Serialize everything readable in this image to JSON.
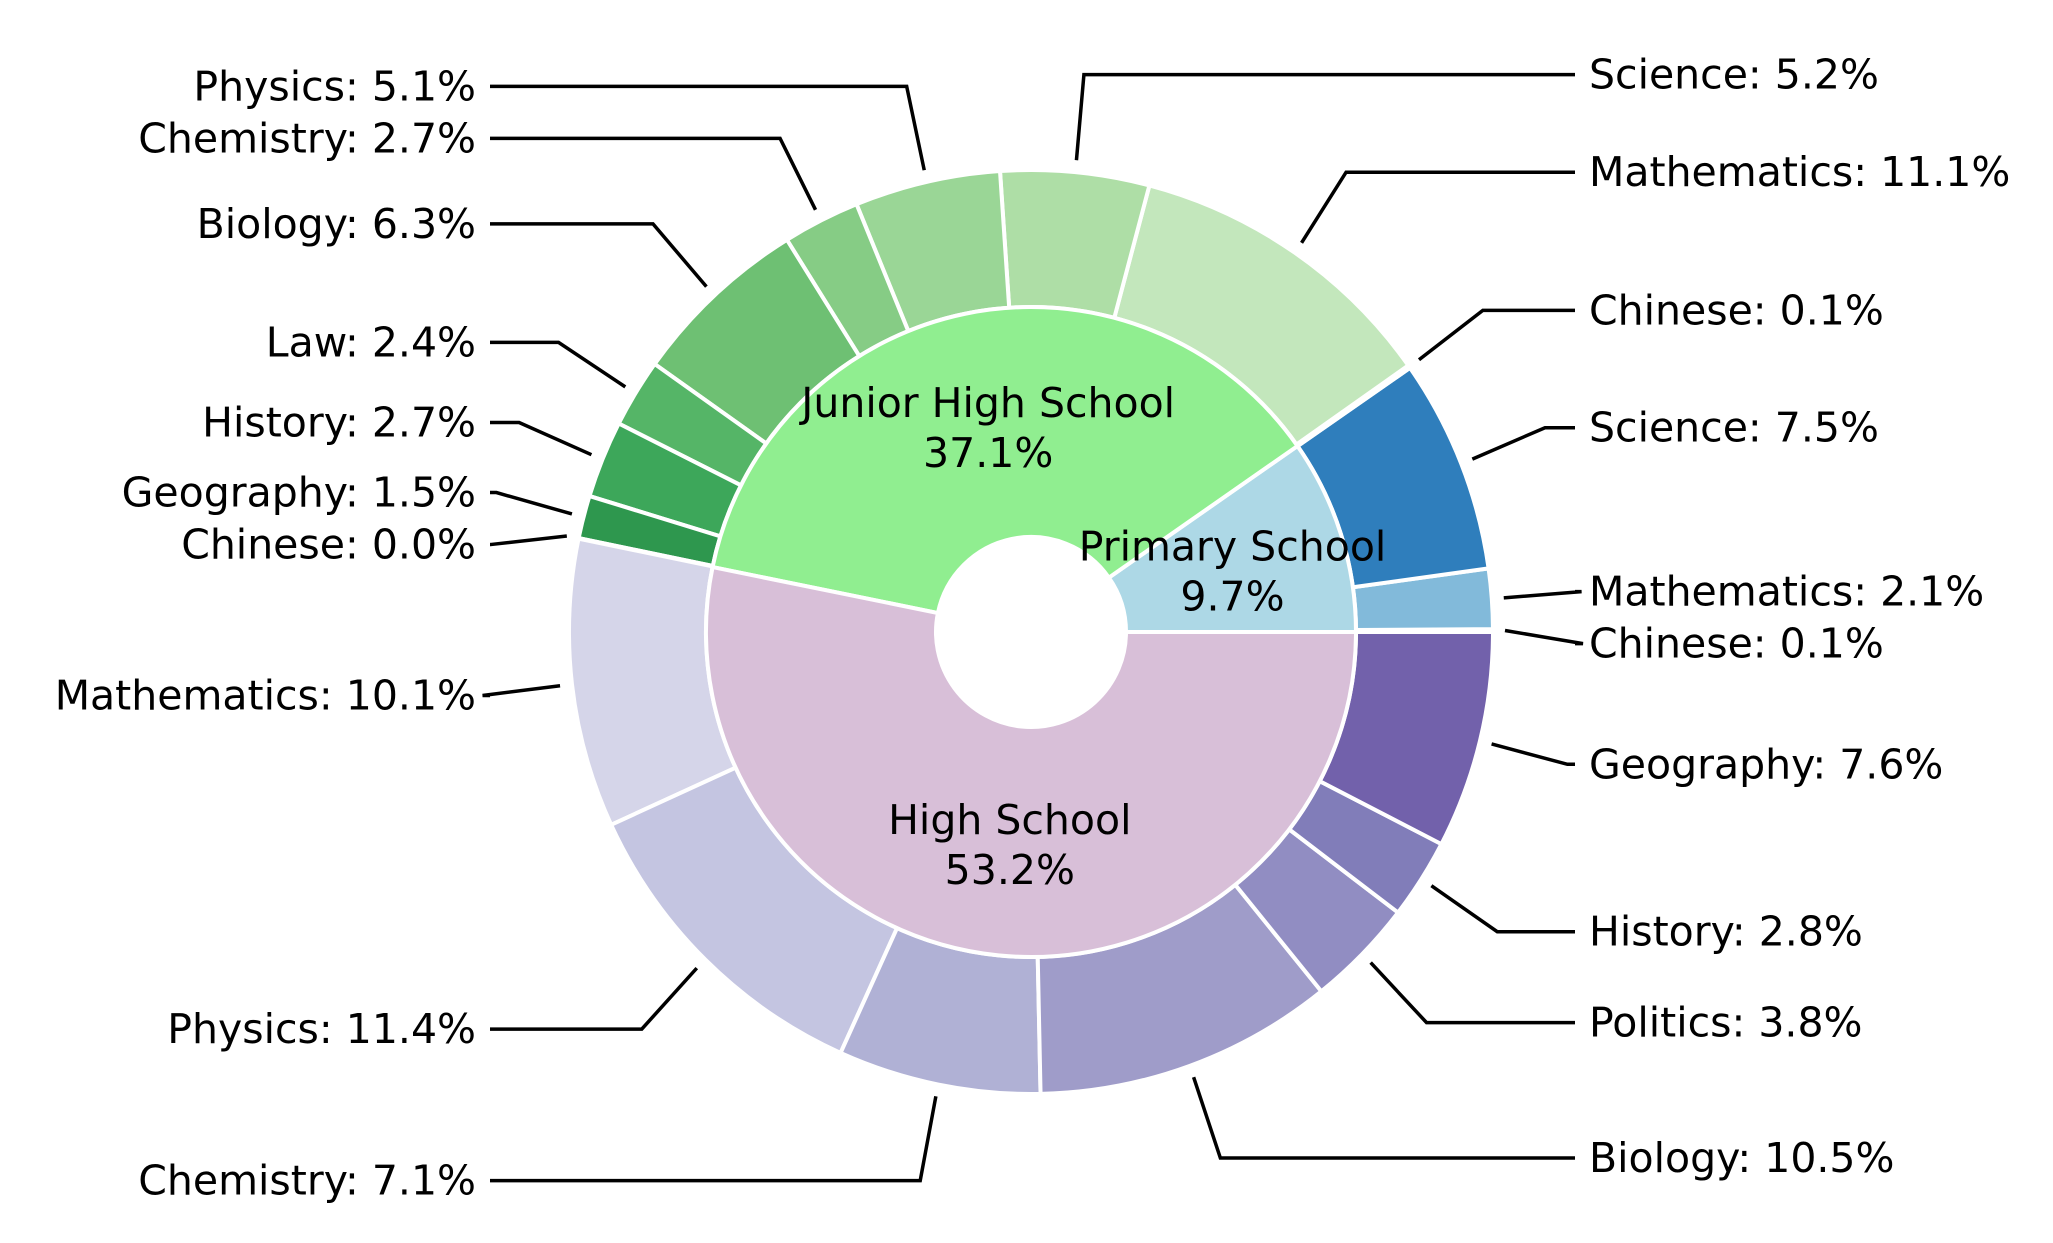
{
  "chart_data": {
    "type": "pie",
    "title": "",
    "inner_ring": [
      {
        "name": "Primary School",
        "label": "9.7%",
        "value": 9.7,
        "color": "#add8e6"
      },
      {
        "name": "Junior High School",
        "label": "37.1%",
        "value": 37.1,
        "color": "#90ee90"
      },
      {
        "name": "High School",
        "label": "53.2%",
        "value": 53.2,
        "color": "#d8bfd8"
      }
    ],
    "outer_ring": [
      {
        "group": "Primary School",
        "name": "Chinese",
        "label": "Chinese: 0.1%",
        "value": 0.1,
        "color": "#c6dbef"
      },
      {
        "group": "Primary School",
        "name": "Mathematics",
        "label": "Mathematics: 2.1%",
        "value": 2.1,
        "color": "#82bada"
      },
      {
        "group": "Primary School",
        "name": "Science",
        "label": "Science: 7.5%",
        "value": 7.5,
        "color": "#2f7ebc"
      },
      {
        "group": "Junior High School",
        "name": "Chinese",
        "label": "Chinese: 0.1%",
        "value": 0.1,
        "color": "#d9f0d3"
      },
      {
        "group": "Junior High School",
        "name": "Mathematics",
        "label": "Mathematics: 11.1%",
        "value": 11.1,
        "color": "#c3e7bc"
      },
      {
        "group": "Junior High School",
        "name": "Science",
        "label": "Science: 5.2%",
        "value": 5.2,
        "color": "#aedea6"
      },
      {
        "group": "Junior High School",
        "name": "Physics",
        "label": "Physics: 5.1%",
        "value": 5.1,
        "color": "#9ad696"
      },
      {
        "group": "Junior High School",
        "name": "Chemistry",
        "label": "Chemistry: 2.7%",
        "value": 2.7,
        "color": "#86cc85"
      },
      {
        "group": "Junior High School",
        "name": "Biology",
        "label": "Biology: 6.3%",
        "value": 6.3,
        "color": "#6ec073"
      },
      {
        "group": "Junior High School",
        "name": "Law",
        "label": "Law: 2.4%",
        "value": 2.4,
        "color": "#55b567"
      },
      {
        "group": "Junior High School",
        "name": "History",
        "label": "History: 2.7%",
        "value": 2.7,
        "color": "#3da75a"
      },
      {
        "group": "Junior High School",
        "name": "Geography",
        "label": "Geography: 1.5%",
        "value": 1.5,
        "color": "#2e974e"
      },
      {
        "group": "Junior High School",
        "name": "Chinese",
        "label": "Chinese: 0.0%",
        "value": 0.02,
        "color": "#1f8442"
      },
      {
        "group": "High School",
        "name": "Mathematics",
        "label": "Mathematics: 10.1%",
        "value": 10.1,
        "color": "#d5d5e9"
      },
      {
        "group": "High School",
        "name": "Physics",
        "label": "Physics: 11.4%",
        "value": 11.4,
        "color": "#c4c5e1"
      },
      {
        "group": "High School",
        "name": "Chemistry",
        "label": "Chemistry: 7.1%",
        "value": 7.1,
        "color": "#b0b1d5"
      },
      {
        "group": "High School",
        "name": "Biology",
        "label": "Biology: 10.5%",
        "value": 10.5,
        "color": "#9f9cc9"
      },
      {
        "group": "High School",
        "name": "Politics",
        "label": "Politics: 3.8%",
        "value": 3.8,
        "color": "#918dc2"
      },
      {
        "group": "High School",
        "name": "History",
        "label": "History: 2.8%",
        "value": 2.8,
        "color": "#817db9"
      },
      {
        "group": "High School",
        "name": "Geography",
        "label": "Geography: 7.6%",
        "value": 7.6,
        "color": "#7261ab"
      }
    ]
  }
}
